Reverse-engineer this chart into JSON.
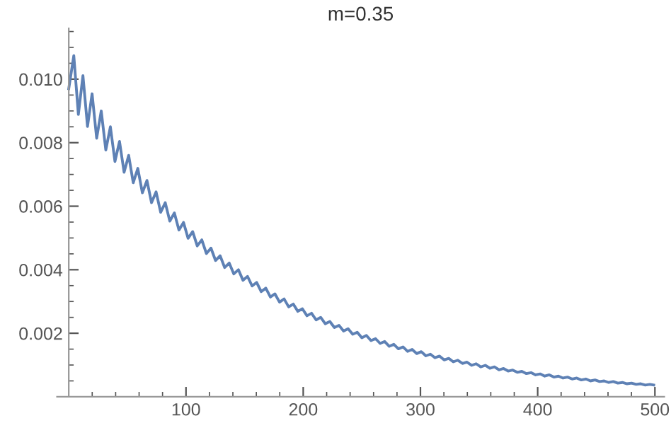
{
  "chart_data": {
    "type": "line",
    "title": "m=0.35",
    "x": [
      0,
      4.3,
      8.2,
      12.1,
      16.0,
      19.9,
      23.8,
      27.7,
      31.6,
      35.5,
      39.4,
      43.3,
      47.2,
      51.1,
      55.0,
      58.9,
      62.8,
      66.7,
      70.6,
      74.5,
      78.4,
      82.3,
      86.2,
      90.1,
      94.0,
      97.9,
      101.8,
      105.7,
      109.6,
      113.5,
      117.4,
      121.3,
      125.2,
      129.1,
      133.0,
      136.9,
      140.8,
      144.7,
      148.6,
      152.5,
      156.4,
      160.3,
      164.2,
      168.1,
      172.0,
      175.9,
      179.8,
      183.7,
      187.6,
      191.5,
      195.4,
      199.3,
      203.2,
      207.1,
      211.0,
      214.9,
      218.8,
      222.7,
      226.6,
      230.5,
      234.4,
      238.3,
      242.2,
      246.1,
      250.0,
      253.9,
      257.8,
      261.7,
      265.6,
      269.5,
      273.4,
      277.3,
      281.2,
      285.1,
      289.0,
      292.9,
      296.8,
      300.7,
      304.6,
      308.5,
      312.4,
      316.3,
      320.2,
      324.1,
      328.0,
      331.9,
      335.8,
      339.7,
      343.6,
      347.5,
      351.4,
      355.3,
      359.2,
      363.1,
      367.0,
      370.9,
      374.8,
      378.7,
      382.6,
      386.5,
      390.4,
      394.3,
      398.2,
      402.1,
      406.0,
      409.9,
      413.8,
      417.7,
      421.6,
      425.5,
      429.4,
      433.3,
      437.2,
      441.1,
      445.0,
      448.9,
      452.8,
      456.7,
      460.6,
      464.5,
      468.4,
      472.3,
      476.2,
      480.1,
      484.0,
      487.9,
      491.8,
      495.7,
      499.0
    ],
    "series": [
      {
        "color": "#5e81b5",
        "values": [
          0.0097,
          0.01074,
          0.00889,
          0.01011,
          0.00851,
          0.00954,
          0.00814,
          0.009,
          0.00777,
          0.0085,
          0.00741,
          0.00804,
          0.00707,
          0.0076,
          0.00674,
          0.00719,
          0.00642,
          0.00681,
          0.00611,
          0.00645,
          0.00581,
          0.00611,
          0.00553,
          0.00579,
          0.00525,
          0.00549,
          0.00499,
          0.0052,
          0.00475,
          0.00494,
          0.00451,
          0.00468,
          0.00429,
          0.00444,
          0.00407,
          0.00421,
          0.00387,
          0.004,
          0.00367,
          0.00379,
          0.00349,
          0.0036,
          0.00331,
          0.00342,
          0.00314,
          0.00324,
          0.00298,
          0.00308,
          0.00283,
          0.00292,
          0.00269,
          0.00277,
          0.00255,
          0.00263,
          0.00242,
          0.0025,
          0.0023,
          0.00237,
          0.00218,
          0.00225,
          0.00207,
          0.00214,
          0.00197,
          0.00203,
          0.00186,
          0.00193,
          0.00177,
          0.00183,
          0.00168,
          0.00174,
          0.00159,
          0.00165,
          0.00151,
          0.00157,
          0.00143,
          0.00149,
          0.00136,
          0.00142,
          0.00129,
          0.00134,
          0.00123,
          0.00128,
          0.00116,
          0.00121,
          0.0011,
          0.00115,
          0.00105,
          0.00109,
          0.00099,
          0.00104,
          0.00094,
          0.00099,
          0.0009,
          0.00094,
          0.00085,
          0.00089,
          0.00081,
          0.00084,
          0.00077,
          0.0008,
          0.00073,
          0.00076,
          0.00069,
          0.00072,
          0.00065,
          0.00069,
          0.00062,
          0.00065,
          0.00059,
          0.00062,
          0.00056,
          0.00059,
          0.00053,
          0.00056,
          0.0005,
          0.00053,
          0.00048,
          0.0005,
          0.00045,
          0.00048,
          0.00043,
          0.00045,
          0.00041,
          0.00043,
          0.00039,
          0.00041,
          0.00037,
          0.00039,
          0.00037
        ]
      }
    ],
    "xlim": [
      -10,
      508
    ],
    "ylim": [
      0,
      0.0116
    ],
    "xticks": [
      {
        "value": 20,
        "label": null
      },
      {
        "value": 40,
        "label": null
      },
      {
        "value": 60,
        "label": null
      },
      {
        "value": 80,
        "label": null
      },
      100,
      {
        "value": 120,
        "label": null
      },
      {
        "value": 140,
        "label": null
      },
      {
        "value": 160,
        "label": null
      },
      {
        "value": 180,
        "label": null
      },
      200,
      {
        "value": 220,
        "label": null
      },
      {
        "value": 240,
        "label": null
      },
      {
        "value": 260,
        "label": null
      },
      {
        "value": 280,
        "label": null
      },
      300,
      {
        "value": 320,
        "label": null
      },
      {
        "value": 340,
        "label": null
      },
      {
        "value": 360,
        "label": null
      },
      {
        "value": 380,
        "label": null
      },
      400,
      {
        "value": 420,
        "label": null
      },
      {
        "value": 440,
        "label": null
      },
      {
        "value": 460,
        "label": null
      },
      {
        "value": 480,
        "label": null
      },
      500
    ],
    "yticks": [
      {
        "value": 0.0005,
        "label": null
      },
      {
        "value": 0.001,
        "label": null
      },
      {
        "value": 0.0015,
        "label": null
      },
      {
        "value": 0.002,
        "label": "0.002"
      },
      {
        "value": 0.0025,
        "label": null
      },
      {
        "value": 0.003,
        "label": null
      },
      {
        "value": 0.0035,
        "label": null
      },
      {
        "value": 0.004,
        "label": "0.004"
      },
      {
        "value": 0.0045,
        "label": null
      },
      {
        "value": 0.005,
        "label": null
      },
      {
        "value": 0.0055,
        "label": null
      },
      {
        "value": 0.006,
        "label": "0.006"
      },
      {
        "value": 0.0065,
        "label": null
      },
      {
        "value": 0.007,
        "label": null
      },
      {
        "value": 0.0075,
        "label": null
      },
      {
        "value": 0.008,
        "label": "0.008"
      },
      {
        "value": 0.0085,
        "label": null
      },
      {
        "value": 0.009,
        "label": null
      },
      {
        "value": 0.0095,
        "label": null
      },
      {
        "value": 0.01,
        "label": "0.010"
      },
      {
        "value": 0.0105,
        "label": null
      },
      {
        "value": 0.011,
        "label": null
      },
      {
        "value": 0.0115,
        "label": null
      }
    ],
    "grid": false,
    "marker": "none",
    "line_style": "solid"
  }
}
